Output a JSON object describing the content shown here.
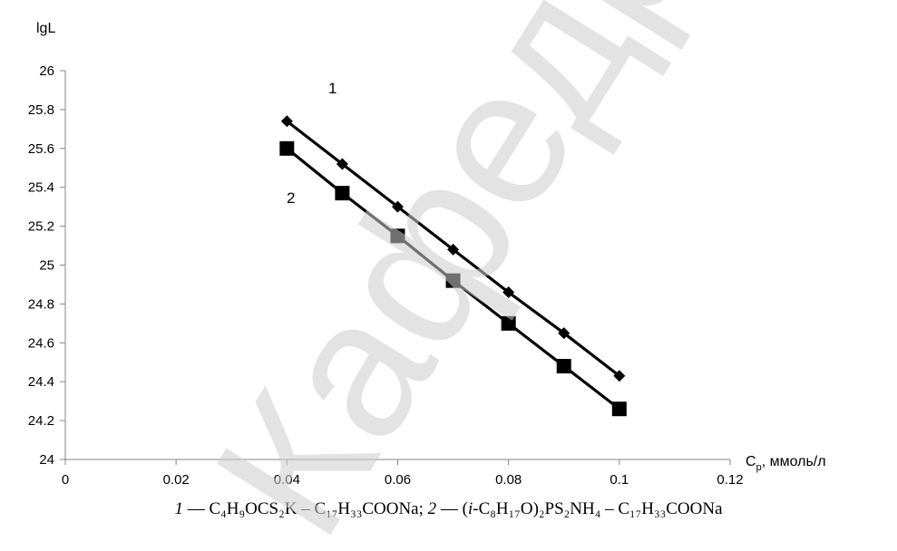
{
  "chart_data": {
    "type": "line",
    "ylabel": "lgL",
    "xlabel_main": "C",
    "xlabel_sub": "р",
    "xlabel_rest": ", ммоль/л",
    "xlim": [
      0,
      0.12
    ],
    "ylim": [
      24,
      26
    ],
    "xticks": [
      "0",
      "0.02",
      "0.04",
      "0.06",
      "0.08",
      "0.1",
      "0.12"
    ],
    "yticks": [
      "24",
      "24.2",
      "24.4",
      "24.6",
      "24.8",
      "25",
      "25.2",
      "25.4",
      "25.6",
      "25.8",
      "26"
    ],
    "grid": false,
    "series": [
      {
        "name": "1",
        "marker": "diamond",
        "x": [
          0.04,
          0.05,
          0.06,
          0.07,
          0.08,
          0.09,
          0.1
        ],
        "y": [
          25.74,
          25.52,
          25.3,
          25.08,
          24.86,
          24.65,
          24.43
        ]
      },
      {
        "name": "2",
        "marker": "square",
        "x": [
          0.04,
          0.05,
          0.06,
          0.07,
          0.08,
          0.09,
          0.1
        ],
        "y": [
          25.6,
          25.37,
          25.15,
          24.92,
          24.7,
          24.48,
          24.26
        ]
      }
    ]
  },
  "caption": {
    "p1_num": "1",
    "p1_text": " — C₄H₉OCS₂K – C₁₇H₃₃COONa; ",
    "p2_num": "2",
    "p2_text": " — (",
    "p2_iso": "i",
    "p2_rest": "-C₈H₁₇O)₂PS₂NH₄ – C₁₇H₃₃COONa"
  },
  "watermark": {
    "text": "Кафедра Карпов",
    "color": "#cccccc"
  }
}
